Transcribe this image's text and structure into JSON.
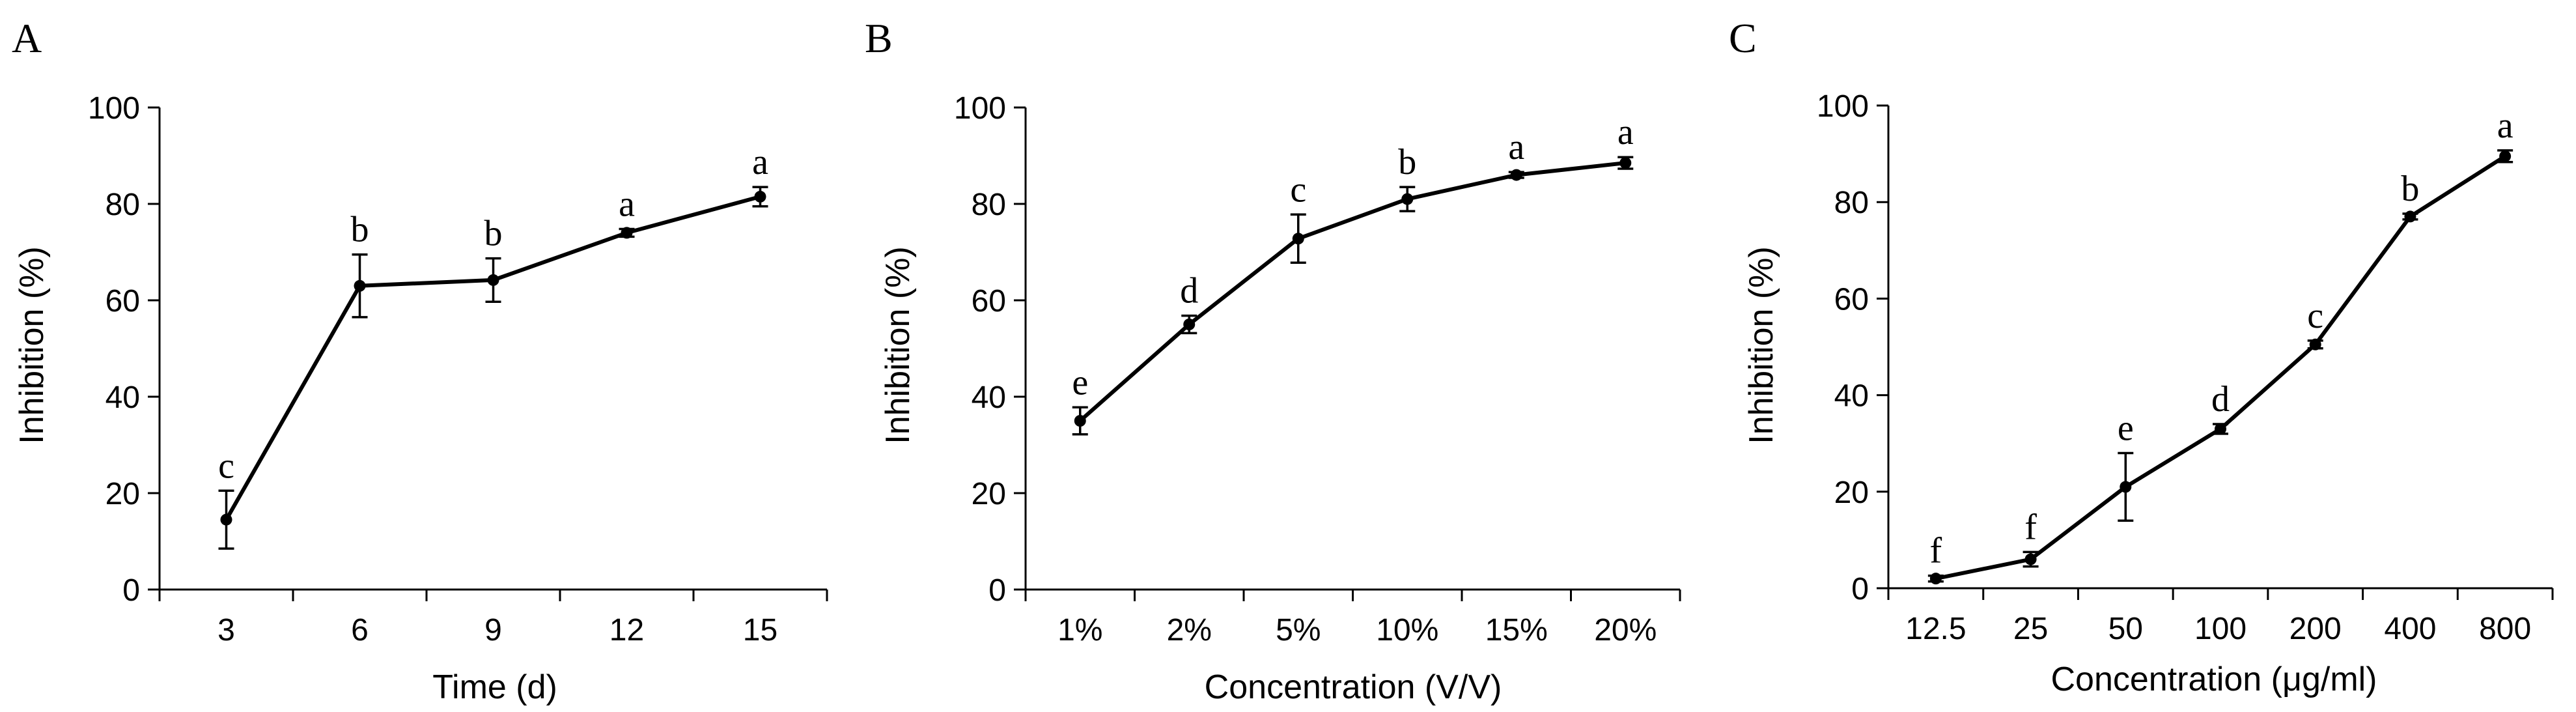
{
  "chart_data": [
    {
      "type": "line",
      "panel_label": "A",
      "xlabel": "Time (d)",
      "ylabel": "Inhibition (%)",
      "categories": [
        "3",
        "6",
        "9",
        "12",
        "15"
      ],
      "values": [
        14.5,
        63.0,
        64.2,
        74.0,
        81.5
      ],
      "errors": [
        6.0,
        6.5,
        4.5,
        0.8,
        2.0
      ],
      "significance": [
        "c",
        "b",
        "b",
        "a",
        "a"
      ],
      "ylim": [
        0,
        100
      ],
      "yticks": [
        "0",
        "20",
        "40",
        "60",
        "80",
        "100"
      ]
    },
    {
      "type": "line",
      "panel_label": "B",
      "xlabel": "Concentration (V/V)",
      "ylabel": "Inhibition (%)",
      "categories": [
        "1%",
        "2%",
        "5%",
        "10%",
        "15%",
        "20%"
      ],
      "values": [
        35.0,
        55.0,
        72.8,
        81.0,
        86.0,
        88.5
      ],
      "errors": [
        2.8,
        1.8,
        5.0,
        2.5,
        0.6,
        1.2
      ],
      "significance": [
        "e",
        "d",
        "c",
        "b",
        "a",
        "a"
      ],
      "ylim": [
        0,
        100
      ],
      "yticks": [
        "0",
        "20",
        "40",
        "60",
        "80",
        "100"
      ]
    },
    {
      "type": "line",
      "panel_label": "C",
      "xlabel": "Concentration (μg/ml)",
      "ylabel": "Inhibition (%)",
      "categories": [
        "12.5",
        "25",
        "50",
        "100",
        "200",
        "400",
        "800"
      ],
      "values": [
        2.0,
        6.0,
        21.0,
        33.0,
        50.5,
        77.0,
        89.5
      ],
      "errors": [
        0.6,
        1.5,
        7.0,
        1.0,
        0.8,
        0.6,
        1.2
      ],
      "significance": [
        "f",
        "f",
        "e",
        "d",
        "c",
        "b",
        "a"
      ],
      "ylim": [
        0,
        100
      ],
      "yticks": [
        "0",
        "20",
        "40",
        "60",
        "80",
        "100"
      ]
    }
  ]
}
